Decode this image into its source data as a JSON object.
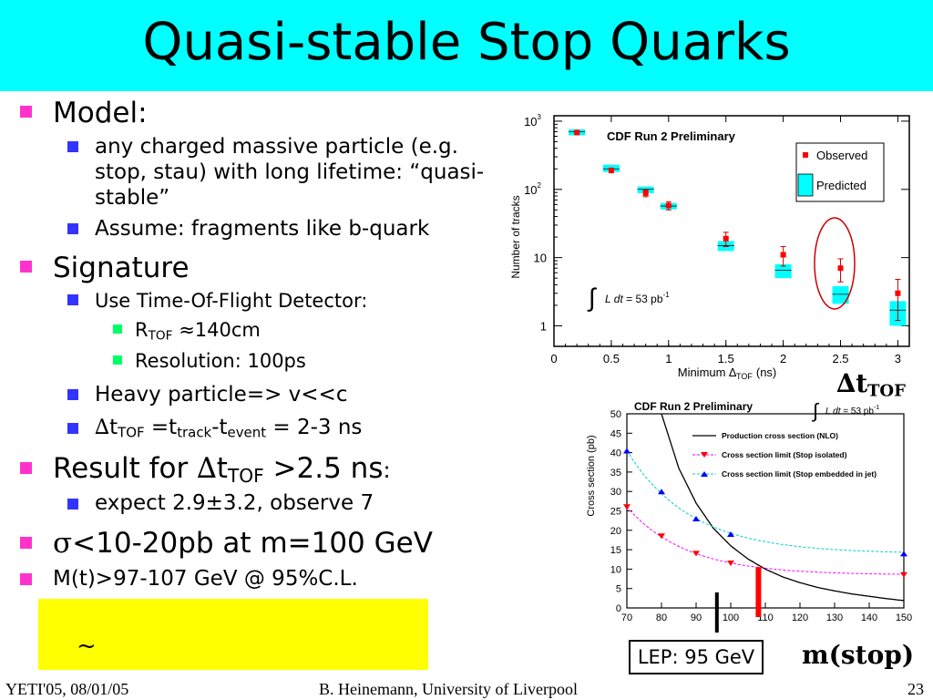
{
  "title": "Quasi-stable Stop Quarks",
  "bullets": {
    "model": "Model:",
    "model_sub1": "any charged massive particle (e.g. stop, stau) with long lifetime: “quasi-stable”",
    "model_sub1_line1": "any charged massive particle (e.g.",
    "model_sub1_line2": "stop, stau) with long lifetime: “quasi-",
    "model_sub1_line3": "stable”",
    "model_sub2": "Assume: fragments like b-quark",
    "signature": "Signature",
    "sig_sub1": "Use Time-Of-Flight Detector:",
    "rtof_prefix": "R",
    "rtof_sub": "TOF",
    "rtof_value": " ≈140cm",
    "resolution": "Resolution: 100ps",
    "heavy": "Heavy particle=> v<<c",
    "dt_delta": "∆",
    "dt_t": "t",
    "dt_tof": "TOF",
    "dt_eq": " =t",
    "dt_track": "track",
    "dt_minus": "-t",
    "dt_event": "event",
    "dt_value": " = 2-3 ns",
    "result_prefix": "Result for ",
    "result_delta": "∆",
    "result_t": "t",
    "result_tof": "TOF",
    "result_suffix": " >2.5 ns",
    "result_colon": ":",
    "expect": "expect 2.9±3.2, observe 7",
    "sigma_sym": "σ",
    "sigma_text": "<10-20pb at m=100 GeV",
    "mass_limit": "M(t)>97-107 GeV @ 95%C.L."
  },
  "yellow_box_text": "~",
  "footer": {
    "left": "YETI'05, 08/01/05",
    "center": "B. Heinemann, University of Liverpool",
    "right": "23"
  },
  "annotations": {
    "lep": "LEP: 95 GeV",
    "mstop": "m(stop)",
    "dtof_delta": "∆",
    "dtof_t": "t",
    "dtof_sub": "TOF"
  },
  "colors": {
    "title_bg": "#00ffff",
    "bullet_l1": "#ff33cc",
    "bullet_l2": "#3333ff",
    "bullet_l3": "#00ff66",
    "yellow_box": "#ffff00",
    "observed": "#ff0000",
    "predicted": "#00ffff",
    "limit_isolated": "#ff00ff",
    "limit_jet": "#00cccc"
  },
  "chart_data": [
    {
      "type": "scatter",
      "title": "CDF Run 2 Preliminary",
      "xlabel": "Minimum ∆TOF (ns)",
      "xlabel_main": "Minimum ∆",
      "xlabel_sub": "TOF",
      "xlabel_unit": "(ns)",
      "ylabel": "Number of tracks",
      "yscale": "log",
      "xlim": [
        0,
        3.1
      ],
      "ylim": [
        0.5,
        1200
      ],
      "xticks": [
        "0",
        "0.5",
        "1",
        "1.5",
        "2",
        "2.5",
        "3"
      ],
      "yticks": [
        {
          "base": "10",
          "exp": "3",
          "value": 1000
        },
        {
          "base": "10",
          "exp": "2",
          "value": 100
        },
        {
          "base": "10",
          "exp": "",
          "value": 10
        },
        {
          "base": "1",
          "exp": "",
          "value": 1
        }
      ],
      "legend": [
        "Observed",
        "Predicted"
      ],
      "legend_position": "top-right",
      "luminosity_label": "L dt = 53 pb",
      "luminosity_integral": "∫",
      "luminosity_L": "L dt",
      "luminosity_value": " = 53 pb",
      "luminosity_exp": "-1",
      "x": [
        0.2,
        0.5,
        0.8,
        1.0,
        1.5,
        2.0,
        2.5,
        3.0
      ],
      "observed": [
        680,
        190,
        88,
        58,
        19,
        11,
        7,
        3
      ],
      "observed_err": [
        30,
        15,
        10,
        8,
        4.5,
        3.5,
        2.6,
        1.8
      ],
      "predicted": [
        700,
        200,
        100,
        57,
        15,
        6.5,
        2.9,
        1.7
      ],
      "predicted_band": [
        [
          620,
          760
        ],
        [
          180,
          230
        ],
        [
          88,
          110
        ],
        [
          51,
          63
        ],
        [
          12.5,
          17.5
        ],
        [
          5,
          8
        ],
        [
          2.1,
          3.8
        ],
        [
          1.0,
          2.3
        ]
      ]
    },
    {
      "type": "line",
      "title": "CDF Run 2 Preliminary",
      "ylabel": "Cross section (pb)",
      "xlim": [
        70,
        150
      ],
      "ylim": [
        0,
        50
      ],
      "xticks": [
        "70",
        "80",
        "90",
        "100",
        "110",
        "120",
        "130",
        "140",
        "150"
      ],
      "yticks": [
        "0",
        "5",
        "10",
        "15",
        "20",
        "25",
        "30",
        "35",
        "40",
        "45",
        "50"
      ],
      "luminosity_integral": "∫",
      "luminosity_L": "L dt",
      "luminosity_value": " = 53 pb",
      "luminosity_exp": "-1",
      "legend_position": "top-right",
      "series": [
        {
          "name": "Production cross section (NLO)",
          "x": [
            80,
            85,
            90,
            95,
            100,
            105,
            110,
            115,
            120,
            125,
            130,
            135,
            140,
            145,
            150
          ],
          "values": [
            50,
            36,
            27,
            20.5,
            16,
            12.6,
            10,
            8,
            6.5,
            5.3,
            4.4,
            3.6,
            3,
            2.4,
            1.9
          ]
        },
        {
          "name": "Cross section limit (Stop isolated)",
          "x": [
            70,
            80,
            90,
            100,
            150
          ],
          "values": [
            26,
            18.5,
            14,
            11.5,
            8.5
          ]
        },
        {
          "name": "Cross section limit (Stop embedded in jet)",
          "x": [
            70,
            80,
            90,
            100,
            150
          ],
          "values": [
            40.5,
            30,
            23,
            19,
            14
          ]
        }
      ],
      "limit_marker_x": 108
    }
  ]
}
